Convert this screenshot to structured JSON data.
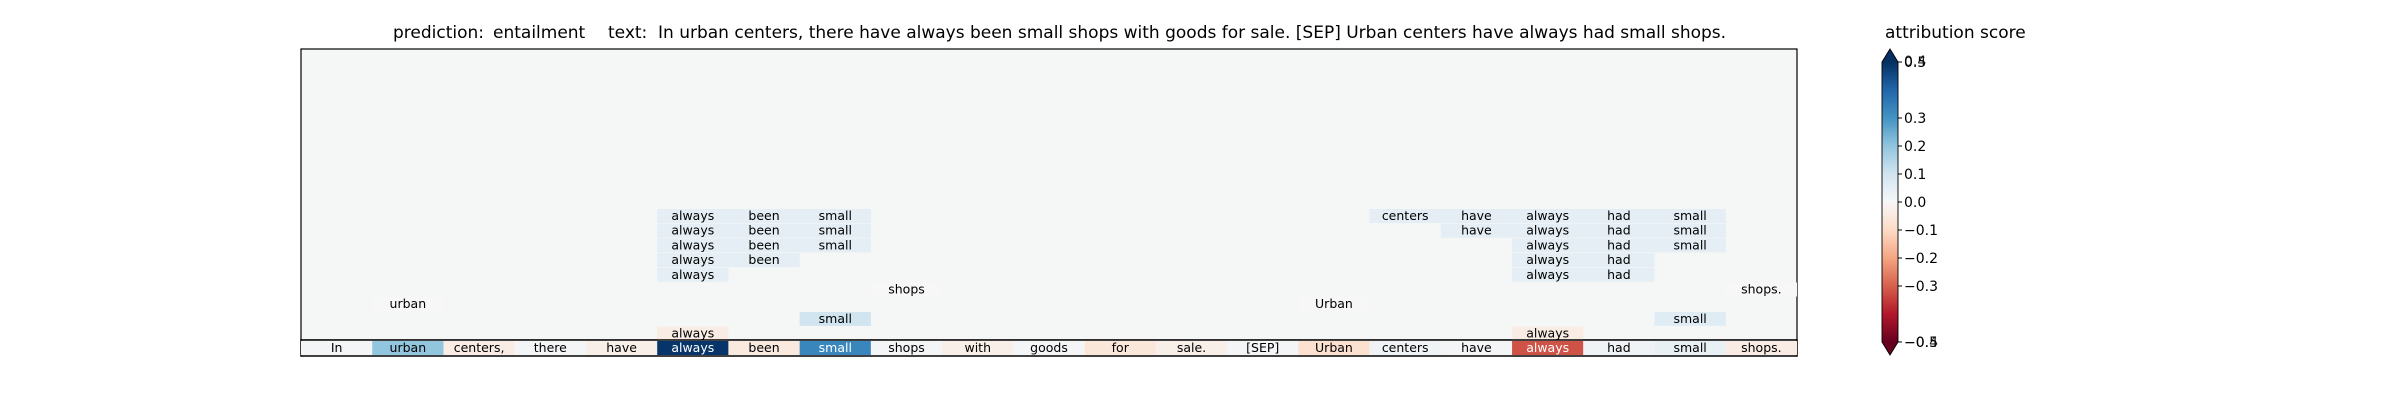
{
  "header": {
    "prediction_label": "prediction:",
    "prediction_value": "entailment",
    "text_label": "text:",
    "text_value": "In urban centers, there have always been small shops with goods for sale. [SEP] Urban centers have always had small shops."
  },
  "colorbar": {
    "title": "attribution score",
    "range": [
      -0.5,
      0.5
    ],
    "ticks": [
      "0.5",
      "0.3",
      "0.2",
      "0.1",
      "0.0",
      "−0.1",
      "−0.2",
      "−0.3",
      "−0.5"
    ],
    "tick_values": [
      0.5,
      0.3,
      0.2,
      0.1,
      0.0,
      -0.1,
      -0.2,
      -0.3,
      -0.5
    ],
    "overlay_tick_top": "0.4",
    "overlay_tick_bottom": "−0.4",
    "colormap": "RdBu",
    "extend": "both"
  },
  "chart_data": {
    "type": "heatmap",
    "tokens": [
      "In",
      "urban",
      "centers,",
      "there",
      "have",
      "always",
      "been",
      "small",
      "shops",
      "with",
      "goods",
      "for",
      "sale.",
      "[SEP]",
      "Urban",
      "centers",
      "have",
      "always",
      "had",
      "small",
      "shops."
    ],
    "token_scores": [
      0.01,
      0.2,
      -0.04,
      0.01,
      -0.03,
      0.49,
      -0.05,
      0.33,
      0.01,
      -0.03,
      0.01,
      -0.06,
      -0.03,
      0.01,
      -0.08,
      0.02,
      0.01,
      -0.32,
      0.02,
      0.04,
      -0.04
    ],
    "rows": [
      [
        {
          "i": 15,
          "t": "centers",
          "s": 0.05
        },
        {
          "i": 16,
          "t": "have",
          "s": 0.05
        },
        {
          "i": 17,
          "t": "always",
          "s": 0.05
        },
        {
          "i": 18,
          "t": "had",
          "s": 0.05
        },
        {
          "i": 19,
          "t": "small",
          "s": 0.05
        },
        {
          "i": 5,
          "t": "always",
          "s": 0.05
        },
        {
          "i": 6,
          "t": "been",
          "s": 0.05
        },
        {
          "i": 7,
          "t": "small",
          "s": 0.05
        }
      ],
      [
        {
          "i": 16,
          "t": "have",
          "s": 0.05
        },
        {
          "i": 17,
          "t": "always",
          "s": 0.05
        },
        {
          "i": 18,
          "t": "had",
          "s": 0.05
        },
        {
          "i": 19,
          "t": "small",
          "s": 0.05
        },
        {
          "i": 5,
          "t": "always",
          "s": 0.05
        },
        {
          "i": 6,
          "t": "been",
          "s": 0.05
        },
        {
          "i": 7,
          "t": "small",
          "s": 0.05
        }
      ],
      [
        {
          "i": 17,
          "t": "always",
          "s": 0.05
        },
        {
          "i": 18,
          "t": "had",
          "s": 0.05
        },
        {
          "i": 19,
          "t": "small",
          "s": 0.05
        },
        {
          "i": 5,
          "t": "always",
          "s": 0.05
        },
        {
          "i": 6,
          "t": "been",
          "s": 0.05
        },
        {
          "i": 7,
          "t": "small",
          "s": 0.05
        }
      ],
      [
        {
          "i": 17,
          "t": "always",
          "s": 0.05
        },
        {
          "i": 18,
          "t": "had",
          "s": 0.05
        },
        {
          "i": 5,
          "t": "always",
          "s": 0.05
        },
        {
          "i": 6,
          "t": "been",
          "s": 0.05
        }
      ],
      [
        {
          "i": 17,
          "t": "always",
          "s": 0.05
        },
        {
          "i": 18,
          "t": "had",
          "s": 0.05
        },
        {
          "i": 5,
          "t": "always",
          "s": 0.05
        }
      ],
      [
        {
          "i": 8,
          "t": "shops",
          "s": 0.0
        },
        {
          "i": 20,
          "t": "shops.",
          "s": 0.0
        }
      ],
      [
        {
          "i": 1,
          "t": "urban",
          "s": 0.0
        },
        {
          "i": 14,
          "t": "Urban",
          "s": 0.0
        }
      ],
      [
        {
          "i": 7,
          "t": "small",
          "s": 0.1
        },
        {
          "i": 19,
          "t": "small",
          "s": 0.06
        }
      ],
      [
        {
          "i": 5,
          "t": "always",
          "s": -0.04
        },
        {
          "i": 17,
          "t": "always",
          "s": -0.04
        }
      ]
    ],
    "xlabel": "",
    "ylabel": "",
    "grid": false
  }
}
